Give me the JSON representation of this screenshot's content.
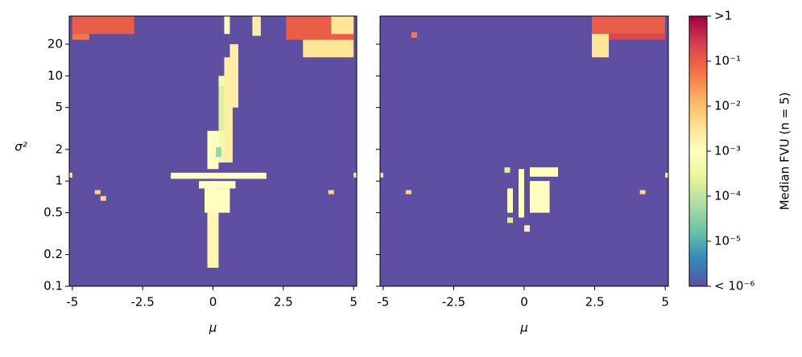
{
  "chart_data": {
    "type": "heatmap",
    "xlabel": "μ",
    "ylabel": "σ²",
    "yscale": "log",
    "xlim": [
      -5.11,
      5.11
    ],
    "xticks": [
      -5,
      -2.5,
      0,
      2.5,
      5
    ],
    "ylim": [
      0.1,
      37
    ],
    "yticks": [
      0.1,
      0.2,
      0.5,
      1,
      2,
      5,
      10,
      20
    ],
    "colormap": "Spectral_r",
    "clim": [
      1e-06,
      1
    ],
    "cticks": [
      {
        "value": 1,
        "label": ">1"
      },
      {
        "value": 0.1,
        "label": "10⁻¹"
      },
      {
        "value": 0.01,
        "label": "10⁻²"
      },
      {
        "value": 0.001,
        "label": "10⁻³"
      },
      {
        "value": 0.0001,
        "label": "10⁻⁴"
      },
      {
        "value": 1e-05,
        "label": "10⁻⁵"
      },
      {
        "value": 1e-06,
        "label": "< 10⁻⁶"
      }
    ],
    "colorbar_label": "Median FVU (n = 5)",
    "panels": [
      {
        "cells": [
          {
            "x": [
              -5,
              -2.8
            ],
            "y": [
              25,
              37
            ],
            "value": 0.1
          },
          {
            "x": [
              -5,
              -4.4
            ],
            "y": [
              22,
              25
            ],
            "value": 0.05
          },
          {
            "x": [
              0.4,
              0.6
            ],
            "y": [
              25,
              37
            ],
            "value": 0.001
          },
          {
            "x": [
              1.4,
              1.7
            ],
            "y": [
              24,
              37
            ],
            "value": 0.002
          },
          {
            "x": [
              2.6,
              5
            ],
            "y": [
              22,
              37
            ],
            "value": 0.1
          },
          {
            "x": [
              3.2,
              5
            ],
            "y": [
              15,
              22
            ],
            "value": 0.003
          },
          {
            "x": [
              4.2,
              5
            ],
            "y": [
              25,
              37
            ],
            "value": 0.003
          },
          {
            "x": [
              0.6,
              0.9
            ],
            "y": [
              5,
              20
            ],
            "value": 0.002
          },
          {
            "x": [
              0.4,
              0.7
            ],
            "y": [
              1.5,
              15
            ],
            "value": 0.002
          },
          {
            "x": [
              0.2,
              0.4
            ],
            "y": [
              1.5,
              10
            ],
            "value": 0.0005
          },
          {
            "x": [
              -0.2,
              0.2
            ],
            "y": [
              1.3,
              3
            ],
            "value": 0.001
          },
          {
            "x": [
              -0.1,
              0.1
            ],
            "y": [
              0.15,
              1
            ],
            "value": 0.0008
          },
          {
            "x": [
              -1.5,
              1.9
            ],
            "y": [
              1.05,
              1.2
            ],
            "value": 0.001
          },
          {
            "x": [
              -0.5,
              0.8
            ],
            "y": [
              0.85,
              1
            ],
            "value": 0.001
          },
          {
            "x": [
              -0.3,
              0.6
            ],
            "y": [
              0.5,
              0.85
            ],
            "value": 0.001
          },
          {
            "x": [
              -0.2,
              0.2
            ],
            "y": [
              0.15,
              0.5
            ],
            "value": 0.0015
          },
          {
            "x": [
              0.2,
              0.4
            ],
            "y": [
              3,
              8
            ],
            "value": 0.0002
          },
          {
            "x": [
              0.1,
              0.3
            ],
            "y": [
              1.7,
              2.1
            ],
            "value": 5e-05
          },
          {
            "x": [
              -5.1,
              -5
            ],
            "y": [
              1.08,
              1.2
            ],
            "value": 0.002
          },
          {
            "x": [
              5,
              5.1
            ],
            "y": [
              1.08,
              1.2
            ],
            "value": 0.002
          },
          {
            "x": [
              -4.2,
              -4
            ],
            "y": [
              0.75,
              0.82
            ],
            "value": 0.005
          },
          {
            "x": [
              -4,
              -3.8
            ],
            "y": [
              0.65,
              0.72
            ],
            "value": 0.005
          },
          {
            "x": [
              4.1,
              4.3
            ],
            "y": [
              0.75,
              0.82
            ],
            "value": 0.005
          }
        ]
      },
      {
        "cells": [
          {
            "x": [
              2.4,
              5
            ],
            "y": [
              25,
              37
            ],
            "value": 0.1
          },
          {
            "x": [
              2.9,
              5
            ],
            "y": [
              22,
              25
            ],
            "value": 0.2
          },
          {
            "x": [
              2.4,
              3
            ],
            "y": [
              15,
              25
            ],
            "value": 0.003
          },
          {
            "x": [
              -4,
              -3.8
            ],
            "y": [
              23,
              26
            ],
            "value": 0.05
          },
          {
            "x": [
              0.2,
              1.2
            ],
            "y": [
              1.1,
              1.35
            ],
            "value": 0.001
          },
          {
            "x": [
              0.2,
              0.9
            ],
            "y": [
              0.5,
              1
            ],
            "value": 0.001
          },
          {
            "x": [
              -0.2,
              0
            ],
            "y": [
              0.45,
              1.3
            ],
            "value": 0.001
          },
          {
            "x": [
              -0.6,
              -0.4
            ],
            "y": [
              0.5,
              0.85
            ],
            "value": 0.001
          },
          {
            "x": [
              -0.7,
              -0.5
            ],
            "y": [
              1.2,
              1.35
            ],
            "value": 0.0002
          },
          {
            "x": [
              -0.6,
              -0.4
            ],
            "y": [
              0.4,
              0.45
            ],
            "value": 0.0002
          },
          {
            "x": [
              0,
              0.2
            ],
            "y": [
              0.33,
              0.38
            ],
            "value": 0.002
          },
          {
            "x": [
              -5.1,
              -5
            ],
            "y": [
              1.08,
              1.2
            ],
            "value": 0.002
          },
          {
            "x": [
              5,
              5.1
            ],
            "y": [
              1.08,
              1.2
            ],
            "value": 0.002
          },
          {
            "x": [
              -4.2,
              -4
            ],
            "y": [
              0.75,
              0.82
            ],
            "value": 0.005
          },
          {
            "x": [
              4.1,
              4.3
            ],
            "y": [
              0.75,
              0.82
            ],
            "value": 0.005
          }
        ]
      }
    ]
  }
}
